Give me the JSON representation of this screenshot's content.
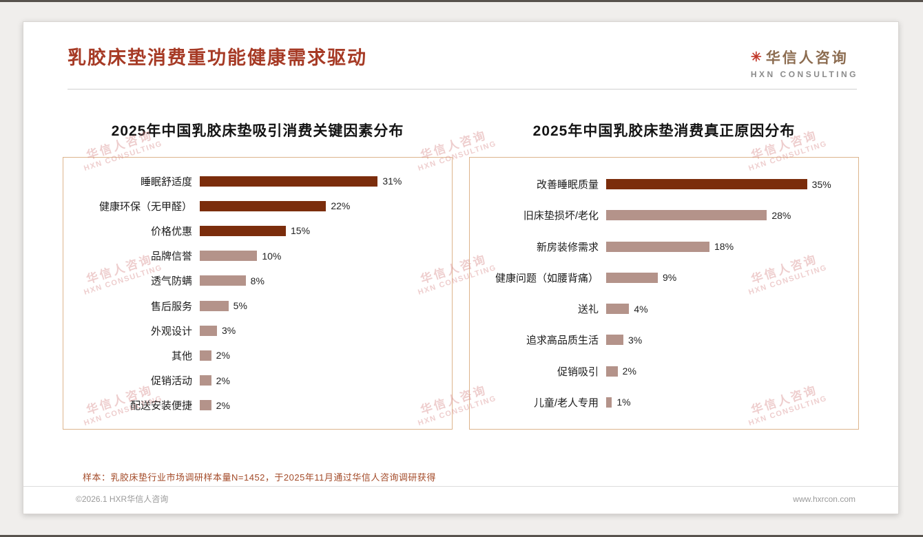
{
  "header": {
    "title": "乳胶床垫消费重功能健康需求驱动",
    "logo": {
      "mark": "✳",
      "cn": "华信人咨询",
      "en": "HXN CONSULTING"
    }
  },
  "watermark": {
    "cn": "华信人咨询",
    "en": "HXN CONSULTING"
  },
  "colors": {
    "title": "#a63a25",
    "bar_dark": "#7b2d0c",
    "bar_light": "#b4938a",
    "panel_border": "#ddb48c",
    "footnote": "#a34a28"
  },
  "chart_data": [
    {
      "type": "bar",
      "orientation": "horizontal",
      "title": "2025年中国乳胶床垫吸引消费关键因素分布",
      "categories": [
        "睡眠舒适度",
        "健康环保（无甲醛）",
        "价格优惠",
        "品牌信誉",
        "透气防螨",
        "售后服务",
        "外观设计",
        "其他",
        "促销活动",
        "配送安装便捷"
      ],
      "values": [
        31,
        22,
        15,
        10,
        8,
        5,
        3,
        2,
        2,
        2
      ],
      "value_suffix": "%",
      "highlight_count": 3,
      "xlim": [
        0,
        42
      ],
      "grid": false,
      "legend": false
    },
    {
      "type": "bar",
      "orientation": "horizontal",
      "title": "2025年中国乳胶床垫消费真正原因分布",
      "categories": [
        "改善睡眠质量",
        "旧床垫损坏/老化",
        "新房装修需求",
        "健康问题（如腰背痛）",
        "送礼",
        "追求高品质生活",
        "促销吸引",
        "儿童/老人专用"
      ],
      "values": [
        35,
        28,
        18,
        9,
        4,
        3,
        2,
        1
      ],
      "value_suffix": "%",
      "highlight_count": 1,
      "xlim": [
        0,
        42
      ],
      "grid": false,
      "legend": false
    }
  ],
  "footer": {
    "note": "样本：乳胶床垫行业市场调研样本量N=1452，于2025年11月通过华信人咨询调研获得",
    "left": "©2026.1 HXR华信人咨询",
    "right": "www.hxrcon.com"
  }
}
